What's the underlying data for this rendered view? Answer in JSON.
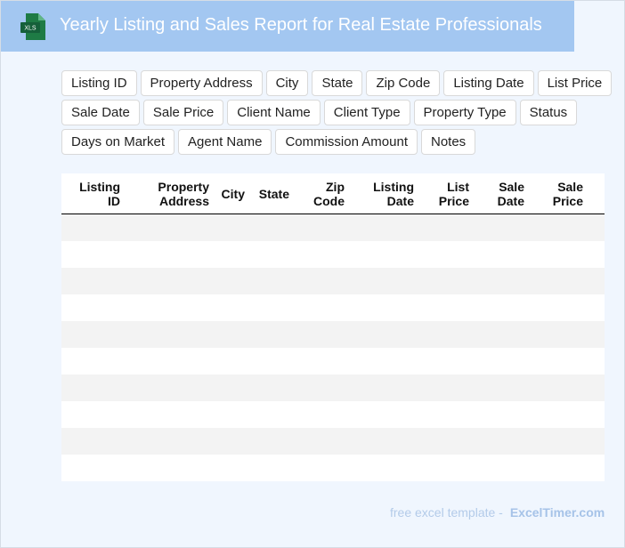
{
  "header": {
    "icon": "XLS",
    "title": "Yearly Listing and Sales Report for Real Estate Professionals"
  },
  "fields": [
    [
      "Listing ID",
      "Property Address",
      "City",
      "State",
      "Zip Code",
      "Listing Date",
      "List Price"
    ],
    [
      "Sale Date",
      "Sale Price",
      "Client Name",
      "Client Type",
      "Property Type",
      "Status"
    ],
    [
      "Days on Market",
      "Agent Name",
      "Commission Amount",
      "Notes"
    ]
  ],
  "table": {
    "columns": [
      [
        "Listing",
        "ID"
      ],
      [
        "Property",
        "Address"
      ],
      [
        "City"
      ],
      [
        "State"
      ],
      [
        "Zip",
        "Code"
      ],
      [
        "Listing",
        "Date"
      ],
      [
        "List",
        "Price"
      ],
      [
        "Sale",
        "Date"
      ],
      [
        "Sale",
        "Price"
      ]
    ]
  },
  "footer": {
    "text": "free excel template -",
    "brand": "ExcelTimer.com"
  }
}
